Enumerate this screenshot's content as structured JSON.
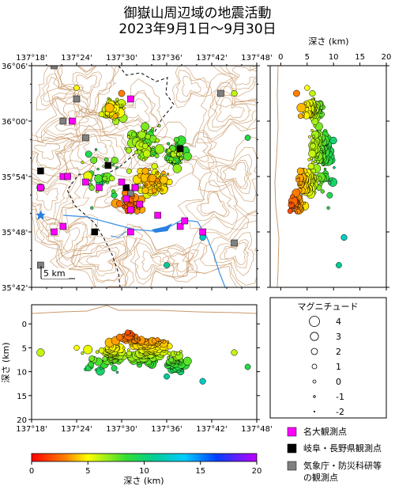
{
  "title": {
    "line1": "御嶽山周辺域の地震活動",
    "line2": "2023年9月1日～9月30日"
  },
  "map": {
    "lon_ticks": [
      "137°18'",
      "137°24'",
      "137°30'",
      "137°36'",
      "137°42'",
      "137°48'"
    ],
    "lat_ticks": [
      "36°06'",
      "36°00'",
      "35°54'",
      "35°48'",
      "35°42'"
    ],
    "scale_bar": "5 km"
  },
  "east_section": {
    "axis_label": "深さ (km)",
    "ticks": [
      "0",
      "5",
      "10",
      "15",
      "20"
    ]
  },
  "south_section": {
    "axis_label": "深さ (km)",
    "depth_ticks": [
      "0",
      "5",
      "10",
      "15",
      "20"
    ],
    "lon_ticks": [
      "137°18'",
      "137°24'",
      "137°30'",
      "137°36'",
      "137°42'",
      "137°48'"
    ]
  },
  "magnitude_legend": {
    "title": "マグニチュード",
    "entries": [
      {
        "label": "4",
        "r": 6.5
      },
      {
        "label": "3",
        "r": 5.2
      },
      {
        "label": "2",
        "r": 4.0
      },
      {
        "label": "1",
        "r": 3.0
      },
      {
        "label": "0",
        "r": 2.0
      },
      {
        "label": "-1",
        "r": 1.3
      },
      {
        "label": "-2",
        "r": 0.7
      }
    ]
  },
  "station_legend": [
    {
      "label": "名大観測点",
      "color": "#ff00ff"
    },
    {
      "label": "岐阜・長野県観測点",
      "color": "#000000"
    },
    {
      "label": "気象庁・防災科研等",
      "color": "#808080"
    },
    {
      "label": "の観測点",
      "color": ""
    }
  ],
  "colorbar": {
    "label": "深さ (km)",
    "ticks": [
      "0",
      "5",
      "10",
      "15",
      "20"
    ]
  },
  "stations": {
    "nagoya_univ": [
      [
        137.52,
        36.04
      ],
      [
        137.37,
        35.9
      ],
      [
        137.38,
        35.9
      ],
      [
        137.42,
        35.89
      ],
      [
        137.45,
        35.88
      ],
      [
        137.5,
        35.89
      ],
      [
        137.53,
        35.88
      ],
      [
        137.51,
        35.86
      ],
      [
        137.52,
        35.84
      ],
      [
        137.54,
        35.85
      ],
      [
        137.58,
        35.83
      ],
      [
        137.63,
        35.81
      ],
      [
        137.64,
        35.82
      ],
      [
        137.52,
        35.8
      ],
      [
        137.35,
        35.8
      ],
      [
        137.37,
        35.81
      ],
      [
        137.32,
        35.88
      ],
      [
        137.39,
        36.0
      ],
      [
        137.68,
        35.8
      ]
    ],
    "pref": [
      [
        137.32,
        35.91
      ],
      [
        137.47,
        35.92
      ],
      [
        137.51,
        35.88
      ],
      [
        137.44,
        35.8
      ],
      [
        137.63,
        35.95
      ]
    ],
    "jma_nied": [
      [
        137.35,
        36.1
      ],
      [
        137.37,
        36.0
      ],
      [
        137.4,
        36.04
      ],
      [
        137.52,
        35.87
      ],
      [
        137.53,
        35.88
      ],
      [
        137.72,
        36.05
      ],
      [
        137.75,
        35.78
      ],
      [
        137.32,
        35.74
      ],
      [
        137.42,
        35.97
      ]
    ]
  }
}
